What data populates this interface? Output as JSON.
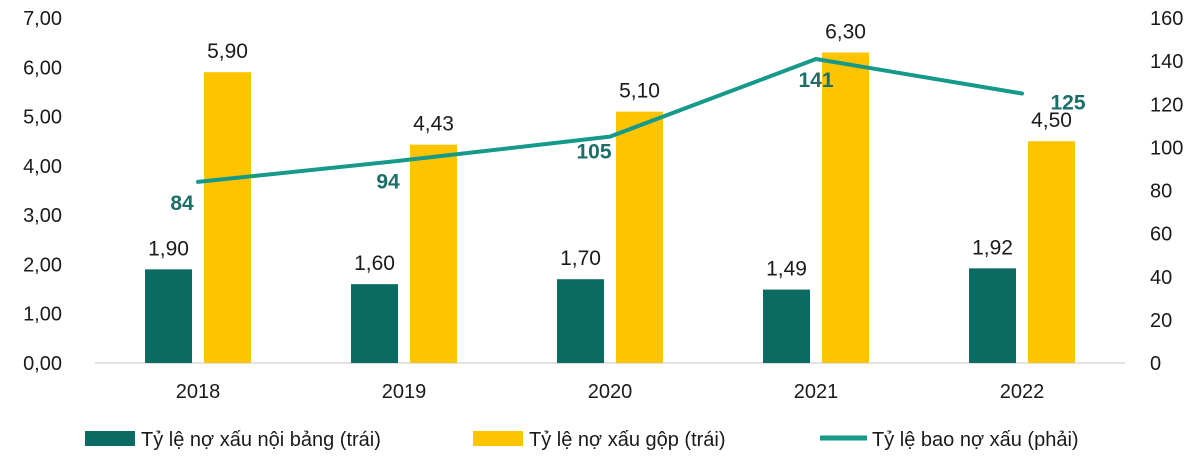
{
  "chart_data": {
    "type": "bar+line",
    "categories": [
      "2018",
      "2019",
      "2020",
      "2021",
      "2022"
    ],
    "left_axis": {
      "min": 0,
      "max": 7,
      "step": 1,
      "tick_labels": [
        "0,00",
        "1,00",
        "2,00",
        "3,00",
        "4,00",
        "5,00",
        "6,00",
        "7,00"
      ]
    },
    "right_axis": {
      "min": 0,
      "max": 160,
      "step": 20,
      "tick_labels": [
        "0",
        "20",
        "40",
        "60",
        "80",
        "100",
        "120",
        "140",
        "160"
      ]
    },
    "series": [
      {
        "name": "Tỷ lệ nợ xấu nội bảng (trái)",
        "type": "bar",
        "axis": "left",
        "color": "#0b6b63",
        "values": [
          1.9,
          1.6,
          1.7,
          1.49,
          1.92
        ],
        "labels": [
          "1,90",
          "1,60",
          "1,70",
          "1,49",
          "1,92"
        ]
      },
      {
        "name": "Tỷ lệ nợ xấu gộp (trái)",
        "type": "bar",
        "axis": "left",
        "color": "#ffc400",
        "values": [
          5.9,
          4.43,
          5.1,
          6.3,
          4.5
        ],
        "labels": [
          "5,90",
          "4,43",
          "5,10",
          "6,30",
          "4,50"
        ]
      },
      {
        "name": "Tỷ lệ bao nợ xấu (phải)",
        "type": "line",
        "axis": "right",
        "color": "#14998a",
        "label_color": "#1b6f68",
        "values": [
          84,
          94,
          105,
          141,
          125
        ],
        "labels": [
          "84",
          "94",
          "105",
          "141",
          "125"
        ]
      }
    ],
    "legend": {
      "position": "bottom"
    },
    "grid": false
  }
}
